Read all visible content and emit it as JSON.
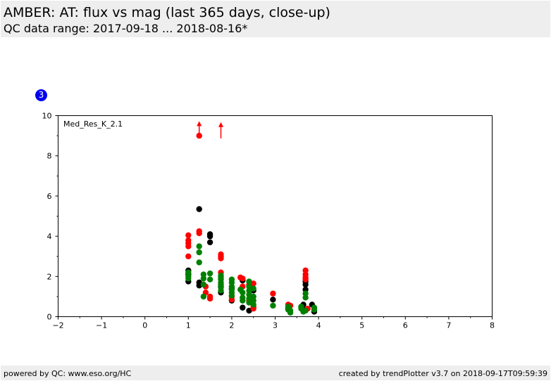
{
  "header": {
    "title": "AMBER: AT: flux vs mag (last 365 days, close-up)",
    "subtitle": "QC data range: 2017-09-18 ... 2018-08-16*"
  },
  "badge": {
    "label": "3",
    "color": "#0000ee"
  },
  "footer": {
    "left": "powered by QC: www.eso.org/HC",
    "right": "created by trendPlotter v3.7 on 2018-09-17T09:59:39"
  },
  "colors": {
    "black": "#000000",
    "red": "#ff0000",
    "green": "#008000",
    "arrow": "#ff0000"
  },
  "chart_data": {
    "type": "scatter",
    "annotation": "Med_Res_K_2.1",
    "xlim": [
      -2,
      8
    ],
    "ylim": [
      0,
      10
    ],
    "x_ticks": [
      -2,
      -1,
      0,
      1,
      2,
      3,
      4,
      5,
      6,
      7,
      8
    ],
    "y_ticks": [
      0,
      2,
      4,
      6,
      8,
      10
    ],
    "x_tick_labels": [
      "−2",
      "−1",
      "0",
      "1",
      "2",
      "3",
      "4",
      "5",
      "6",
      "7",
      "8"
    ],
    "y_tick_labels": [
      "0",
      "2",
      "4",
      "6",
      "8",
      "10"
    ],
    "grid": false,
    "series": [
      {
        "color": "black",
        "points": [
          [
            1.0,
            1.75
          ],
          [
            1.0,
            2.1
          ],
          [
            1.0,
            2.3
          ],
          [
            1.25,
            5.35
          ],
          [
            1.25,
            1.55
          ],
          [
            1.25,
            1.7
          ],
          [
            1.5,
            4.1
          ],
          [
            1.5,
            4.0
          ],
          [
            1.5,
            3.7
          ],
          [
            1.75,
            1.2
          ],
          [
            1.75,
            1.5
          ],
          [
            2.0,
            0.8
          ],
          [
            2.0,
            1.4
          ],
          [
            2.25,
            0.45
          ],
          [
            2.25,
            1.8
          ],
          [
            2.4,
            0.3
          ],
          [
            2.5,
            1.3
          ],
          [
            2.95,
            0.85
          ],
          [
            3.3,
            0.4
          ],
          [
            3.65,
            0.35
          ],
          [
            3.65,
            0.6
          ],
          [
            3.7,
            1.35
          ],
          [
            3.7,
            1.6
          ],
          [
            3.7,
            1.75
          ],
          [
            3.85,
            0.6
          ],
          [
            3.9,
            0.25
          ]
        ]
      },
      {
        "color": "red",
        "points": [
          [
            1.0,
            4.05
          ],
          [
            1.0,
            3.8
          ],
          [
            1.0,
            3.65
          ],
          [
            1.0,
            3.5
          ],
          [
            1.0,
            3.0
          ],
          [
            1.25,
            9.0
          ],
          [
            1.25,
            4.25
          ],
          [
            1.25,
            4.15
          ],
          [
            1.4,
            1.5
          ],
          [
            1.4,
            1.2
          ],
          [
            1.5,
            1.0
          ],
          [
            1.5,
            0.9
          ],
          [
            1.75,
            3.1
          ],
          [
            1.75,
            3.0
          ],
          [
            1.75,
            2.9
          ],
          [
            1.75,
            2.2
          ],
          [
            2.0,
            1.0
          ],
          [
            2.0,
            0.85
          ],
          [
            2.2,
            1.95
          ],
          [
            2.25,
            1.9
          ],
          [
            2.25,
            1.5
          ],
          [
            2.4,
            1.6
          ],
          [
            2.4,
            0.8
          ],
          [
            2.5,
            1.65
          ],
          [
            2.5,
            0.4
          ],
          [
            2.5,
            0.5
          ],
          [
            2.95,
            1.15
          ],
          [
            3.3,
            0.6
          ],
          [
            3.35,
            0.55
          ],
          [
            3.7,
            2.3
          ],
          [
            3.7,
            2.1
          ],
          [
            3.7,
            1.95
          ],
          [
            3.7,
            1.85
          ],
          [
            3.75,
            0.4
          ]
        ]
      },
      {
        "color": "green",
        "points": [
          [
            1.0,
            2.2
          ],
          [
            1.0,
            2.0
          ],
          [
            1.0,
            1.9
          ],
          [
            1.25,
            3.5
          ],
          [
            1.25,
            3.2
          ],
          [
            1.25,
            2.7
          ],
          [
            1.35,
            2.1
          ],
          [
            1.35,
            1.9
          ],
          [
            1.35,
            1.6
          ],
          [
            1.35,
            1.0
          ],
          [
            1.5,
            2.15
          ],
          [
            1.5,
            1.85
          ],
          [
            1.75,
            2.05
          ],
          [
            1.75,
            1.95
          ],
          [
            1.75,
            1.85
          ],
          [
            1.75,
            1.7
          ],
          [
            1.75,
            1.6
          ],
          [
            1.75,
            1.45
          ],
          [
            1.75,
            1.3
          ],
          [
            2.0,
            1.85
          ],
          [
            2.0,
            1.7
          ],
          [
            2.0,
            1.5
          ],
          [
            2.0,
            1.35
          ],
          [
            2.0,
            1.2
          ],
          [
            2.0,
            1.05
          ],
          [
            2.2,
            1.35
          ],
          [
            2.25,
            1.2
          ],
          [
            2.25,
            0.95
          ],
          [
            2.25,
            0.8
          ],
          [
            2.4,
            1.75
          ],
          [
            2.4,
            1.5
          ],
          [
            2.4,
            1.3
          ],
          [
            2.4,
            1.1
          ],
          [
            2.4,
            0.9
          ],
          [
            2.4,
            0.7
          ],
          [
            2.5,
            1.4
          ],
          [
            2.5,
            1.0
          ],
          [
            2.5,
            0.8
          ],
          [
            2.5,
            0.6
          ],
          [
            2.95,
            0.55
          ],
          [
            3.3,
            0.5
          ],
          [
            3.3,
            0.35
          ],
          [
            3.35,
            0.3
          ],
          [
            3.35,
            0.2
          ],
          [
            3.6,
            0.5
          ],
          [
            3.6,
            0.4
          ],
          [
            3.65,
            0.25
          ],
          [
            3.7,
            1.15
          ],
          [
            3.7,
            0.95
          ],
          [
            3.7,
            0.3
          ],
          [
            3.9,
            0.45
          ],
          [
            3.9,
            0.35
          ]
        ]
      }
    ],
    "off_scale_arrows": [
      [
        1.25,
        9.55
      ],
      [
        1.75,
        9.5
      ]
    ]
  }
}
